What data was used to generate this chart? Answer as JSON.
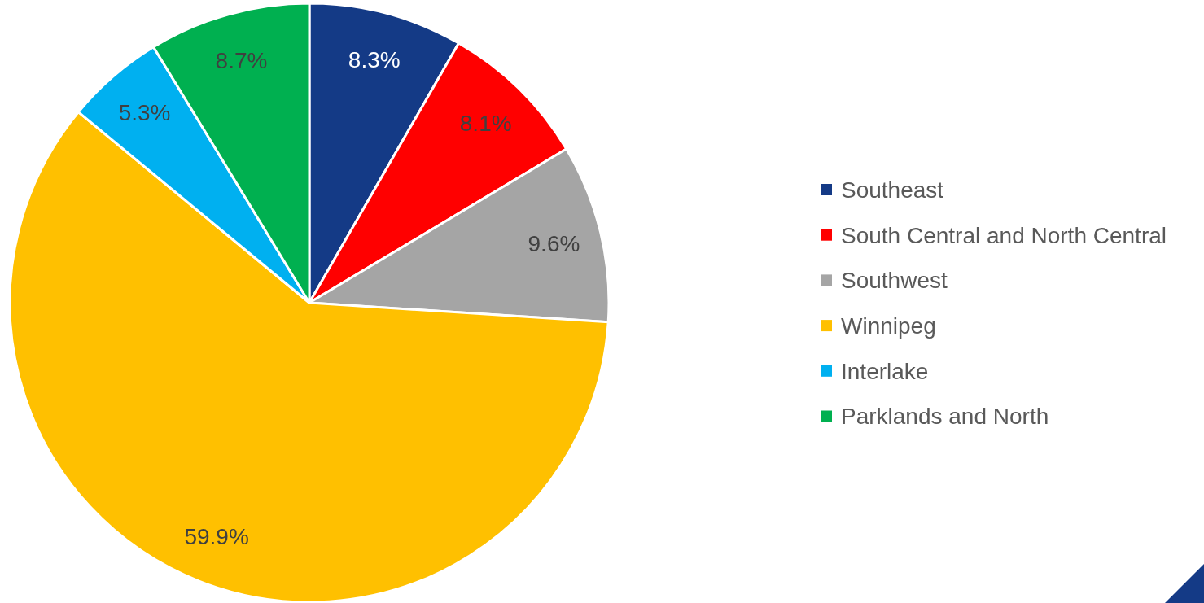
{
  "chart_data": {
    "type": "pie",
    "categories": [
      "Southeast",
      "South Central and North Central",
      "Southwest",
      "Winnipeg",
      "Interlake",
      "Parklands and North"
    ],
    "values": [
      8.3,
      8.1,
      9.6,
      59.9,
      5.3,
      8.7
    ],
    "value_labels": [
      "8.3%",
      "8.1%",
      "9.6%",
      "59.9%",
      "5.3%",
      "8.7%"
    ],
    "colors": [
      "#143a86",
      "#ff0000",
      "#a5a5a5",
      "#ffc000",
      "#00b0f0",
      "#00b050"
    ],
    "legend": "right"
  }
}
